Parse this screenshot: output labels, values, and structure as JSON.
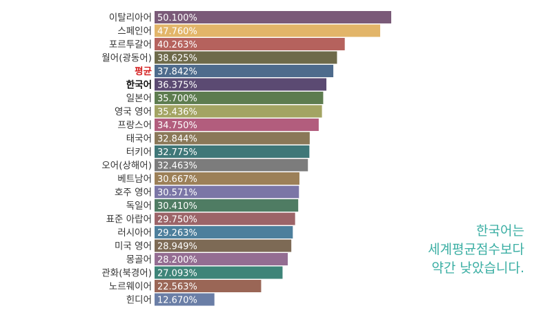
{
  "chart_data": {
    "type": "bar",
    "orientation": "horizontal",
    "title": "",
    "xlabel": "",
    "ylabel": "",
    "xlim": [
      0,
      50.1
    ],
    "grid": false,
    "categories": [
      "이탈리아어",
      "스페인어",
      "포르투갈어",
      "월어(광동어)",
      "평균",
      "한국어",
      "일본어",
      "영국 영어",
      "프랑스어",
      "태국어",
      "터키어",
      "오어(상해어)",
      "베트남어",
      "호주 영어",
      "독일어",
      "표준 아랍어",
      "러시아어",
      "미국 영어",
      "몽골어",
      "관화(북경어)",
      "노르웨이어",
      "힌디어"
    ],
    "values": [
      50.1,
      47.76,
      40.263,
      38.625,
      37.842,
      36.375,
      35.7,
      35.436,
      34.75,
      32.844,
      32.775,
      32.463,
      30.667,
      30.571,
      30.41,
      29.75,
      29.263,
      28.949,
      28.2,
      27.093,
      22.563,
      12.67
    ],
    "value_labels": [
      "50.100%",
      "47.760%",
      "40.263%",
      "38.625%",
      "37.842%",
      "36.375%",
      "35.700%",
      "35.436%",
      "34.750%",
      "32.844%",
      "32.775%",
      "32.463%",
      "30.667%",
      "30.571%",
      "30.410%",
      "29.750%",
      "29.263%",
      "28.949%",
      "28.200%",
      "27.093%",
      "22.563%",
      "12.670%"
    ],
    "colors": [
      "#7a5a78",
      "#e2b569",
      "#b5625d",
      "#6e6a4a",
      "#4e6b8c",
      "#5b4a72",
      "#5d7c4f",
      "#a3a463",
      "#b25d7d",
      "#8a7858",
      "#3f7778",
      "#7c7c7c",
      "#9c8058",
      "#7b76a6",
      "#4f7c63",
      "#9c6468",
      "#4d7f9c",
      "#7d6a55",
      "#946d92",
      "#3e8478",
      "#9a6656",
      "#6a7ea6"
    ],
    "label_colors": {
      "평균": "#d42020",
      "한국어": "#111111",
      "default": "#333333"
    },
    "bold_labels": [
      "평균",
      "한국어"
    ]
  },
  "annotation": {
    "lines": [
      "한국어는",
      "세계평균점수보다",
      "약간 낮았습니다."
    ],
    "color": "#3aaea3"
  }
}
